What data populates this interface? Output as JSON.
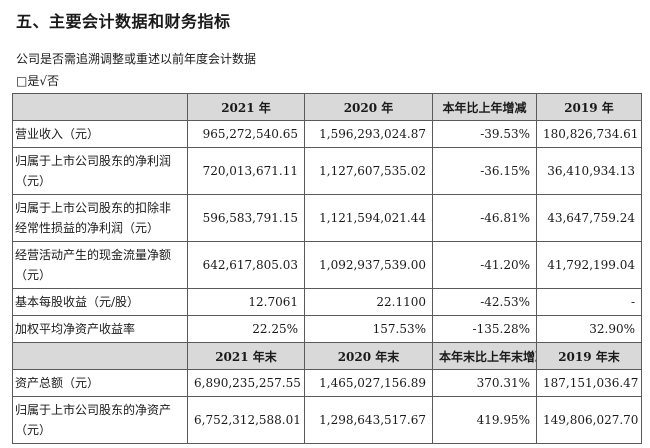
{
  "section_title": "五、主要会计数据和财务指标",
  "restatement_question": "公司是否需追溯调整或重述以前年度会计数据",
  "restatement_answer": "□是√否",
  "table1": {
    "headers": [
      "",
      "2021 年",
      "2020 年",
      "本年比上年增减",
      "2019 年"
    ],
    "rows": [
      {
        "label": "营业收入（元）",
        "c1": "965,272,540.65",
        "c2": "1,596,293,024.87",
        "c3": "-39.53%",
        "c4": "180,826,734.61"
      },
      {
        "label": "归属于上市公司股东的净利润（元）",
        "c1": "720,013,671.11",
        "c2": "1,127,607,535.02",
        "c3": "-36.15%",
        "c4": "36,410,934.13"
      },
      {
        "label": "归属于上市公司股东的扣除非经常性损益的净利润（元）",
        "c1": "596,583,791.15",
        "c2": "1,121,594,021.44",
        "c3": "-46.81%",
        "c4": "43,647,759.24"
      },
      {
        "label": "经营活动产生的现金流量净额（元）",
        "c1": "642,617,805.03",
        "c2": "1,092,937,539.00",
        "c3": "-41.20%",
        "c4": "41,792,199.04"
      },
      {
        "label": "基本每股收益（元/股）",
        "c1": "12.7061",
        "c2": "22.1100",
        "c3": "-42.53%",
        "c4": "-"
      },
      {
        "label": "加权平均净资产收益率",
        "c1": "22.25%",
        "c2": "157.53%",
        "c3": "-135.28%",
        "c4": "32.90%"
      }
    ]
  },
  "table2": {
    "headers": [
      "",
      "2021 年末",
      "2020 年末",
      "本年末比上年末增减",
      "2019 年末"
    ],
    "rows": [
      {
        "label": "资产总额（元）",
        "c1": "6,890,235,257.55",
        "c2": "1,465,027,156.89",
        "c3": "370.31%",
        "c4": "187,151,036.47"
      },
      {
        "label": "归属于上市公司股东的净资产（元）",
        "c1": "6,752,312,588.01",
        "c2": "1,298,643,517.67",
        "c3": "419.95%",
        "c4": "149,806,027.70"
      }
    ]
  }
}
